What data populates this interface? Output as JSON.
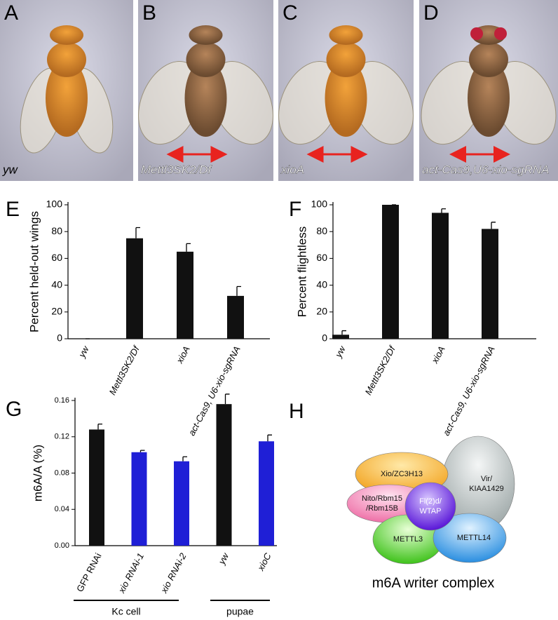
{
  "photos": [
    {
      "panel": "A",
      "caption": "yw"
    },
    {
      "panel": "B",
      "caption": "Mettl3SK2/Df"
    },
    {
      "panel": "C",
      "caption": "xioA"
    },
    {
      "panel": "D",
      "caption": "act-Cas9,U6-xio-sgRNA"
    }
  ],
  "chart_data": [
    {
      "type": "bar",
      "panel": "E",
      "ylabel": "Percent held-out wings",
      "categories": [
        "yw",
        "Mettl3SK2/Df",
        "xioA",
        "act-Cas9, U6-xio-sgRNA"
      ],
      "values": [
        0,
        75,
        65,
        32
      ],
      "errors": [
        0,
        8,
        6,
        7
      ],
      "color": "#111111",
      "ylim": [
        0,
        100
      ],
      "yticks": [
        0,
        20,
        40,
        60,
        80,
        100
      ]
    },
    {
      "type": "bar",
      "panel": "F",
      "ylabel": "Percent flightless",
      "categories": [
        "yw",
        "Mettl3SK2/Df",
        "xioA",
        "act-Cas9, U6-xio-sgRNA"
      ],
      "values": [
        3,
        100,
        94,
        82
      ],
      "errors": [
        3,
        0,
        3,
        5
      ],
      "color": "#111111",
      "ylim": [
        0,
        100
      ],
      "yticks": [
        0,
        20,
        40,
        60,
        80,
        100
      ]
    },
    {
      "type": "bar",
      "panel": "G",
      "ylabel": "m6A/A (%)",
      "categories": [
        "GFP RNAi",
        "xio RNAi-1",
        "xio RNAi-2",
        "yw",
        "xioC"
      ],
      "values": [
        0.128,
        0.103,
        0.093,
        0.156,
        0.115
      ],
      "errors": [
        0.006,
        0.002,
        0.005,
        0.011,
        0.007
      ],
      "colors": [
        "#111111",
        "#1f1fd6",
        "#1f1fd6",
        "#111111",
        "#1f1fd6"
      ],
      "groups": [
        "Kc cell",
        "pupae"
      ],
      "ylim": [
        0,
        0.16
      ],
      "yticks": [
        {
          "value": 0,
          "label": "0.00"
        },
        {
          "value": 0.04,
          "label": "0.04"
        },
        {
          "value": 0.08,
          "label": "0.08"
        },
        {
          "value": 0.12,
          "label": "0.12"
        },
        {
          "value": 0.16,
          "label": "0.16"
        }
      ]
    }
  ],
  "diagram": {
    "panel": "H",
    "caption": "m6A writer complex",
    "nodes": [
      {
        "lines": [
          "Vir/",
          "KIAA1429"
        ]
      },
      {
        "lines": [
          "Xio/ZC3H13"
        ]
      },
      {
        "lines": [
          "Nito/Rbm15",
          "/Rbm15B"
        ]
      },
      {
        "lines": [
          "METTL3"
        ]
      },
      {
        "lines": [
          "METTL14"
        ]
      },
      {
        "lines": [
          "Fl(2)d/",
          "WTAP"
        ]
      }
    ]
  }
}
